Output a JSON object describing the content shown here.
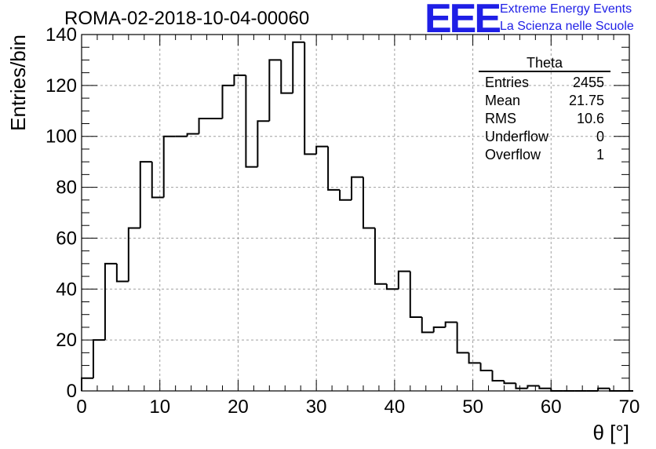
{
  "header": {
    "title": "ROMA-02-2018-10-04-00060",
    "logo_text": "EEE",
    "org_line1": "Extreme Energy Events",
    "org_line2": "La Scienza nelle Scuole"
  },
  "stats": {
    "title": "Theta",
    "rows": [
      {
        "label": "Entries",
        "value": "2455"
      },
      {
        "label": "Mean",
        "value": "21.75"
      },
      {
        "label": "RMS",
        "value": "10.6"
      },
      {
        "label": "Underflow",
        "value": "0"
      },
      {
        "label": "Overflow",
        "value": "1"
      }
    ]
  },
  "colors": {
    "brand": "#1f1fe6",
    "grid": "#a0a0a0",
    "line": "#000000"
  },
  "chart_data": {
    "type": "histogram",
    "title": "ROMA-02-2018-10-04-00060",
    "xlabel": "θ [°]",
    "ylabel": "Entries/bin",
    "xlim": [
      0,
      70
    ],
    "ylim": [
      0,
      140
    ],
    "bin_width": 1.5,
    "x_ticks": [
      0,
      10,
      20,
      30,
      40,
      50,
      60,
      70
    ],
    "y_ticks": [
      0,
      20,
      40,
      60,
      80,
      100,
      120,
      140
    ],
    "grid": true,
    "values": [
      5,
      20,
      50,
      43,
      64,
      90,
      76,
      100,
      100,
      101,
      107,
      107,
      120,
      124,
      88,
      106,
      130,
      117,
      137,
      93,
      96,
      79,
      75,
      84,
      64,
      42,
      40,
      47,
      29,
      23,
      25,
      27,
      15,
      11,
      8,
      4,
      3,
      1,
      2,
      1,
      0,
      0,
      0,
      0,
      1,
      0,
      0
    ]
  }
}
